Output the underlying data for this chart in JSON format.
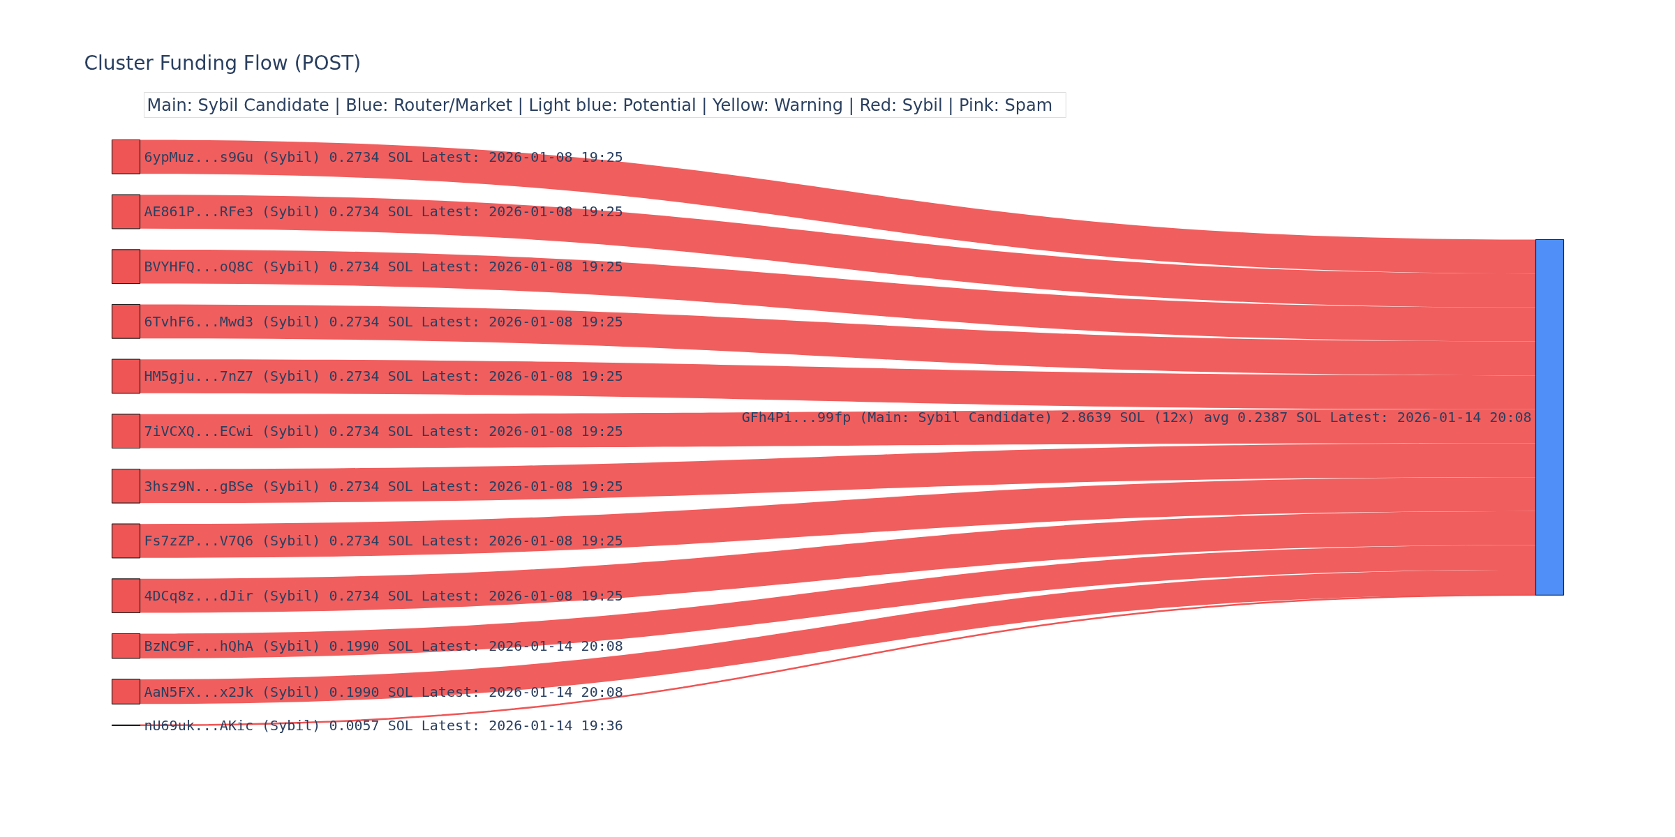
{
  "chart_data": {
    "type": "other",
    "title": "Cluster Funding Flow (POST)",
    "annotations": [
      "Main: Sybil Candidate  |  Blue: Router/Market | Light blue: Potential | Yellow: Warning | Red: Sybil | Pink: Spam"
    ],
    "categories": [
      "6ypMuz...s9Gu (Sybil)",
      "AE861P...RFe3 (Sybil)",
      "BVYHFQ...oQ8C (Sybil)",
      "6TvhF6...Mwd3 (Sybil)",
      "HM5gju...7nZ7 (Sybil)",
      "7iVCXQ...ECwi (Sybil)",
      "3hsz9N...gBSe (Sybil)",
      "Fs7zZP...V7Q6 (Sybil)",
      "4DCq8z...dJir (Sybil)",
      "BzNC9F...hQhA (Sybil)",
      "AaN5FX...x2Jk (Sybil)",
      "nU69uk...AKic (Sybil)",
      "GFh4Pi...99fp (Main: Sybil Candidate)"
    ],
    "values": [
      0.2734,
      0.2734,
      0.2734,
      0.2734,
      0.2734,
      0.2734,
      0.2734,
      0.2734,
      0.2734,
      0.199,
      0.199,
      0.0057,
      2.8639
    ],
    "value_labels": [
      "0.2734 SOL Latest: 2026-01-08 19:25",
      "0.2734 SOL Latest: 2026-01-08 19:25",
      "0.2734 SOL Latest: 2026-01-08 19:25",
      "0.2734 SOL Latest: 2026-01-08 19:25",
      "0.2734 SOL Latest: 2026-01-08 19:25",
      "0.2734 SOL Latest: 2026-01-08 19:25",
      "0.2734 SOL Latest: 2026-01-08 19:25",
      "0.2734 SOL Latest: 2026-01-08 19:25",
      "0.2734 SOL Latest: 2026-01-08 19:25",
      "0.1990 SOL Latest: 2026-01-14 20:08",
      "0.1990 SOL Latest: 2026-01-14 20:08",
      "0.0057 SOL Latest: 2026-01-14 19:36",
      "2.8639 SOL (12x) avg 0.2387 SOL Latest: 2026-01-14 20:08"
    ],
    "colors": [
      "#ef5555",
      "#ef5555",
      "#ef5555",
      "#ef5555",
      "#ef5555",
      "#ef5555",
      "#ef5555",
      "#ef5555",
      "#ef5555",
      "#ef5555",
      "#ef5555",
      "#ef5555",
      "#4f8ff7"
    ]
  }
}
